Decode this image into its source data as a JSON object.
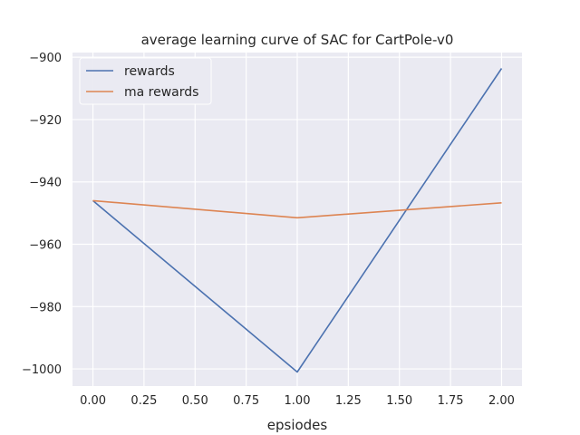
{
  "chart_data": {
    "type": "line",
    "title": "average learning curve of SAC for CartPole-v0",
    "xlabel": "epsiodes",
    "ylabel": "",
    "x": [
      0,
      1,
      2
    ],
    "xlim": [
      -0.1,
      2.1
    ],
    "ylim": [
      -1005.5,
      -898.5
    ],
    "xticks": [
      0.0,
      0.25,
      0.5,
      0.75,
      1.0,
      1.25,
      1.5,
      1.75,
      2.0
    ],
    "xtick_labels": [
      "0.00",
      "0.25",
      "0.50",
      "0.75",
      "1.00",
      "1.25",
      "1.50",
      "1.75",
      "2.00"
    ],
    "yticks": [
      -1000,
      -980,
      -960,
      -940,
      -920,
      -900
    ],
    "ytick_labels": [
      "−1000",
      "−980",
      "−960",
      "−940",
      "−920",
      "−900"
    ],
    "grid": true,
    "legend_position": "top-left",
    "background": "#eaeaf2",
    "series": [
      {
        "name": "rewards",
        "color": "#4c72b0",
        "values": [
          -946,
          -1001,
          -903.6
        ]
      },
      {
        "name": "ma rewards",
        "color": "#dd8452",
        "values": [
          -946,
          -951.5,
          -946.7
        ]
      }
    ]
  }
}
